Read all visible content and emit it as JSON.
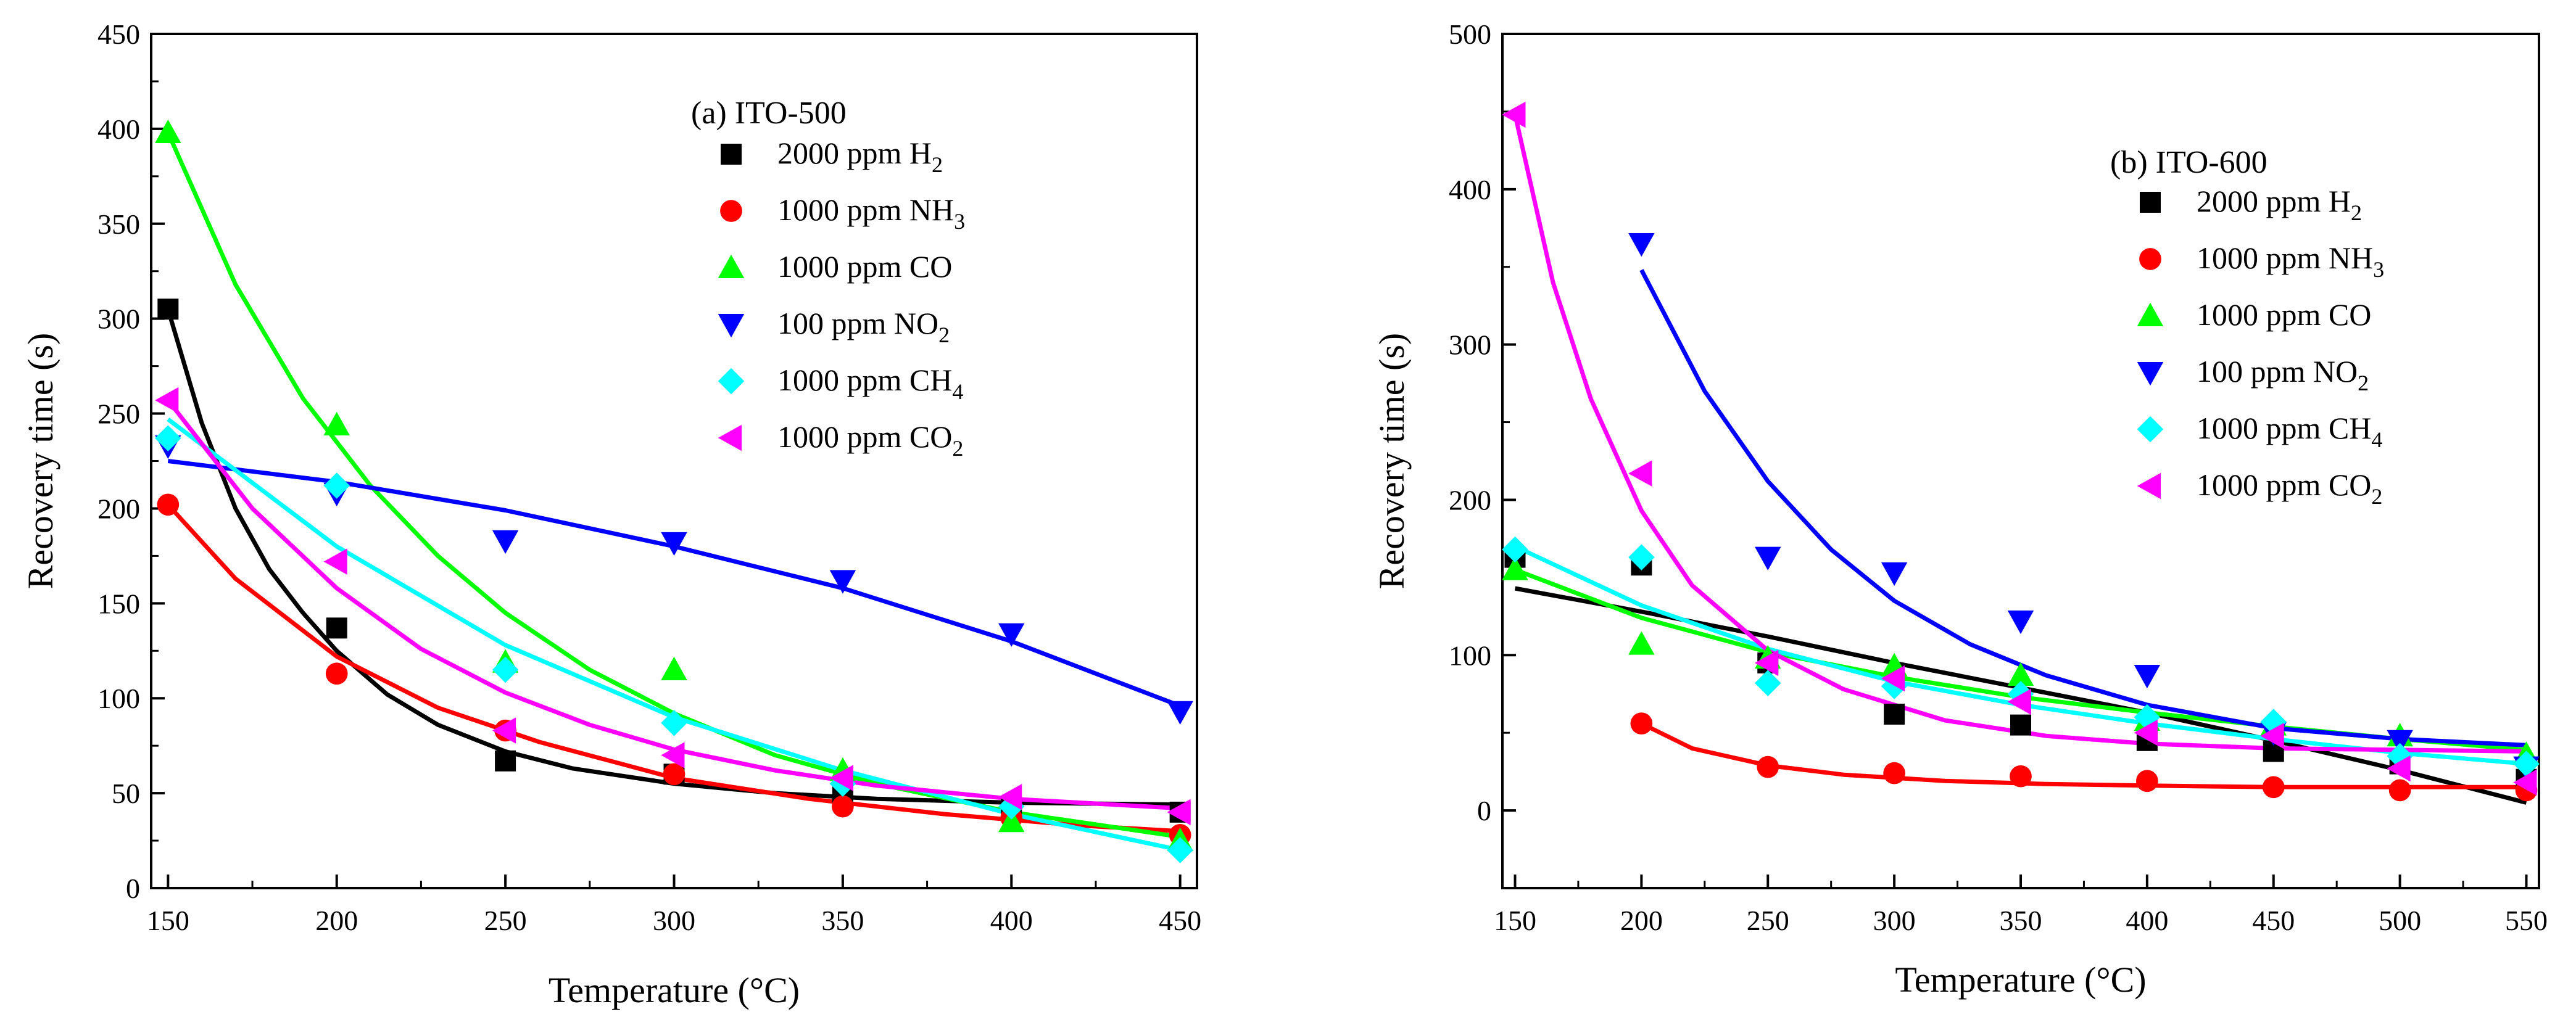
{
  "chart_data": [
    {
      "type": "scatter",
      "title": "(a) ITO-500",
      "xlabel": "Temperature (°C)",
      "ylabel": "Recovery time (s)",
      "xlim": [
        145,
        455
      ],
      "ylim": [
        0,
        450
      ],
      "xticks": [
        150,
        200,
        250,
        300,
        350,
        400,
        450
      ],
      "yticks": [
        0,
        50,
        100,
        150,
        200,
        250,
        300,
        350,
        400,
        450
      ],
      "grid": false,
      "legend_position": "top-center",
      "series": [
        {
          "name": "2000 ppm H",
          "sub": "2",
          "color": "#000000",
          "marker": "square",
          "x": [
            150,
            200,
            250,
            300,
            350,
            400,
            450
          ],
          "y": [
            305,
            137,
            67,
            60,
            48,
            42,
            40
          ],
          "fit_x": [
            150,
            160,
            170,
            180,
            190,
            200,
            215,
            230,
            250,
            270,
            300,
            330,
            360,
            400,
            450
          ],
          "fit_y": [
            305,
            245,
            200,
            168,
            145,
            125,
            102,
            86,
            72,
            63,
            55,
            50,
            47,
            45,
            44
          ]
        },
        {
          "name": "1000 ppm NH",
          "sub": "3",
          "color": "#ff0000",
          "marker": "circle",
          "x": [
            150,
            200,
            250,
            300,
            350,
            400,
            450
          ],
          "y": [
            202,
            113,
            83,
            60,
            43,
            37,
            28
          ],
          "fit_x": [
            150,
            170,
            200,
            230,
            260,
            300,
            340,
            380,
            420,
            450
          ],
          "fit_y": [
            202,
            163,
            122,
            95,
            77,
            58,
            47,
            39,
            33,
            30
          ]
        },
        {
          "name": "1000 ppm CO",
          "sub": "",
          "color": "#00ff00",
          "marker": "triangle-up",
          "x": [
            150,
            200,
            250,
            300,
            350,
            400,
            450
          ],
          "y": [
            398,
            244,
            119,
            115,
            62,
            35,
            25
          ],
          "fit_x": [
            150,
            170,
            190,
            210,
            230,
            250,
            275,
            300,
            330,
            360,
            400,
            450
          ],
          "fit_y": [
            398,
            318,
            258,
            212,
            175,
            145,
            115,
            92,
            70,
            55,
            40,
            27
          ]
        },
        {
          "name": "100 ppm NO",
          "sub": "2",
          "color": "#0000ff",
          "marker": "triangle-down",
          "x": [
            150,
            200,
            250,
            300,
            350,
            400,
            450
          ],
          "y": [
            233,
            208,
            183,
            182,
            162,
            134,
            93
          ],
          "fit_x": [
            150,
            200,
            250,
            300,
            350,
            400,
            450
          ],
          "fit_y": [
            225,
            214,
            199,
            180,
            158,
            130,
            96
          ]
        },
        {
          "name": "1000 ppm CH",
          "sub": "4",
          "color": "#00ffff",
          "marker": "diamond",
          "x": [
            150,
            200,
            250,
            300,
            350,
            400,
            450
          ],
          "y": [
            237,
            212,
            115,
            87,
            55,
            43,
            20
          ],
          "fit_x": [
            150,
            200,
            250,
            300,
            350,
            400,
            450
          ],
          "fit_y": [
            247,
            180,
            128,
            90,
            62,
            39,
            20
          ]
        },
        {
          "name": "1000 ppm CO",
          "sub": "2",
          "color": "#ff00ff",
          "marker": "triangle-left",
          "x": [
            150,
            200,
            250,
            300,
            350,
            400,
            450
          ],
          "y": [
            257,
            172,
            83,
            70,
            58,
            48,
            40
          ],
          "fit_x": [
            150,
            175,
            200,
            225,
            250,
            275,
            300,
            330,
            360,
            400,
            450
          ],
          "fit_y": [
            257,
            200,
            158,
            126,
            103,
            86,
            73,
            62,
            54,
            47,
            42
          ]
        }
      ]
    },
    {
      "type": "scatter",
      "title": "(b) ITO-600",
      "xlabel": "Temperature (°C)",
      "ylabel": "Recovery time (s)",
      "xlim": [
        145,
        555
      ],
      "ylim": [
        -50,
        500
      ],
      "xticks": [
        150,
        200,
        250,
        300,
        350,
        400,
        450,
        500,
        550
      ],
      "yticks": [
        0,
        100,
        200,
        300,
        400,
        500
      ],
      "grid": false,
      "legend_position": "top-right",
      "series": [
        {
          "name": "2000 ppm H",
          "sub": "2",
          "color": "#000000",
          "marker": "square",
          "x": [
            150,
            200,
            250,
            300,
            350,
            400,
            450,
            500,
            550
          ],
          "y": [
            163,
            158,
            95,
            62,
            55,
            45,
            38,
            30,
            20
          ],
          "fit_x": [
            150,
            200,
            250,
            300,
            350,
            400,
            450,
            500,
            550
          ],
          "fit_y": [
            143,
            128,
            112,
            95,
            79,
            63,
            45,
            26,
            5
          ]
        },
        {
          "name": "1000 ppm NH",
          "sub": "3",
          "color": "#ff0000",
          "marker": "circle",
          "x": [
            200,
            250,
            300,
            350,
            400,
            450,
            500,
            550
          ],
          "y": [
            56,
            28,
            24,
            22,
            19,
            15,
            13,
            13
          ],
          "fit_x": [
            200,
            220,
            250,
            280,
            320,
            360,
            400,
            450,
            500,
            550
          ],
          "fit_y": [
            56,
            40,
            29,
            23,
            19,
            17,
            16,
            15,
            15,
            15
          ]
        },
        {
          "name": "1000 ppm CO",
          "sub": "",
          "color": "#00ff00",
          "marker": "triangle-up",
          "x": [
            150,
            200,
            250,
            300,
            350,
            400,
            450,
            500,
            550
          ],
          "y": [
            155,
            107,
            98,
            93,
            87,
            58,
            55,
            48,
            36
          ],
          "fit_x": [
            150,
            200,
            250,
            300,
            350,
            400,
            450,
            500,
            550
          ],
          "fit_y": [
            155,
            124,
            102,
            86,
            73,
            63,
            54,
            46,
            39
          ]
        },
        {
          "name": "100 ppm NO",
          "sub": "2",
          "color": "#0000ff",
          "marker": "triangle-down",
          "x": [
            200,
            250,
            300,
            350,
            400,
            450,
            500,
            550
          ],
          "y": [
            365,
            163,
            153,
            122,
            87,
            50,
            45,
            28
          ],
          "fit_x": [
            200,
            225,
            250,
            275,
            300,
            330,
            360,
            400,
            450,
            500,
            550
          ],
          "fit_y": [
            348,
            270,
            212,
            168,
            135,
            107,
            87,
            68,
            53,
            46,
            42
          ]
        },
        {
          "name": "1000 ppm CH",
          "sub": "4",
          "color": "#00ffff",
          "marker": "diamond",
          "x": [
            150,
            200,
            250,
            300,
            350,
            400,
            450,
            500,
            550
          ],
          "y": [
            168,
            163,
            82,
            80,
            75,
            60,
            57,
            35,
            30
          ],
          "fit_x": [
            150,
            200,
            250,
            300,
            350,
            400,
            450,
            500,
            550
          ],
          "fit_y": [
            170,
            132,
            104,
            83,
            68,
            56,
            46,
            37,
            30
          ]
        },
        {
          "name": "1000 ppm CO",
          "sub": "2",
          "color": "#ff00ff",
          "marker": "triangle-left",
          "x": [
            150,
            200,
            250,
            300,
            350,
            400,
            450,
            500,
            550
          ],
          "y": [
            448,
            217,
            95,
            85,
            70,
            50,
            48,
            27,
            18
          ],
          "fit_x": [
            150,
            165,
            180,
            200,
            220,
            250,
            280,
            320,
            360,
            400,
            450,
            500,
            550
          ],
          "fit_y": [
            448,
            340,
            265,
            193,
            145,
            103,
            78,
            58,
            48,
            43,
            40,
            39,
            38
          ]
        }
      ]
    }
  ]
}
